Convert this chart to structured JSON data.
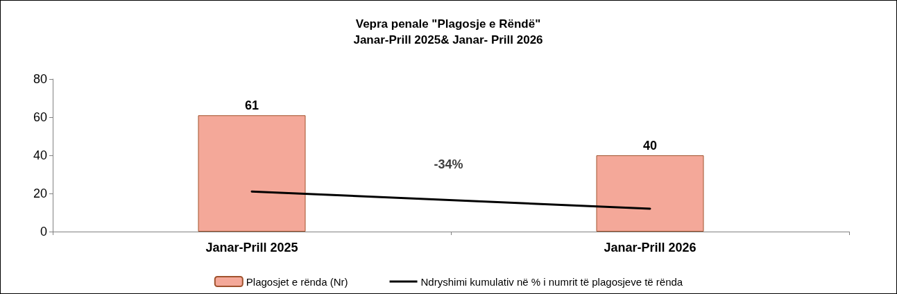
{
  "chart_data": {
    "type": "bar",
    "title": "Vepra penale \"Plagosje e Rëndë\"",
    "subtitle": "Janar-Prill 2025& Janar- Prill 2026",
    "categories": [
      "Janar-Prill 2025",
      "Janar-Prill 2026"
    ],
    "series": [
      {
        "name": "Plagosjet e rënda (Nr)",
        "color": "#f4a899",
        "values": [
          61,
          40
        ],
        "data_labels": true
      },
      {
        "name": "Ndryshimi kumulativ në % i numrit të plagosjeve të rënda",
        "type": "line",
        "color": "#000000",
        "values": [
          21,
          12
        ],
        "marker": "none"
      }
    ],
    "annotations": [
      "-34%"
    ],
    "ylim": [
      0,
      80
    ],
    "yticks": [
      0,
      20,
      40,
      60,
      80
    ],
    "grid": false,
    "legend": "bottom"
  }
}
